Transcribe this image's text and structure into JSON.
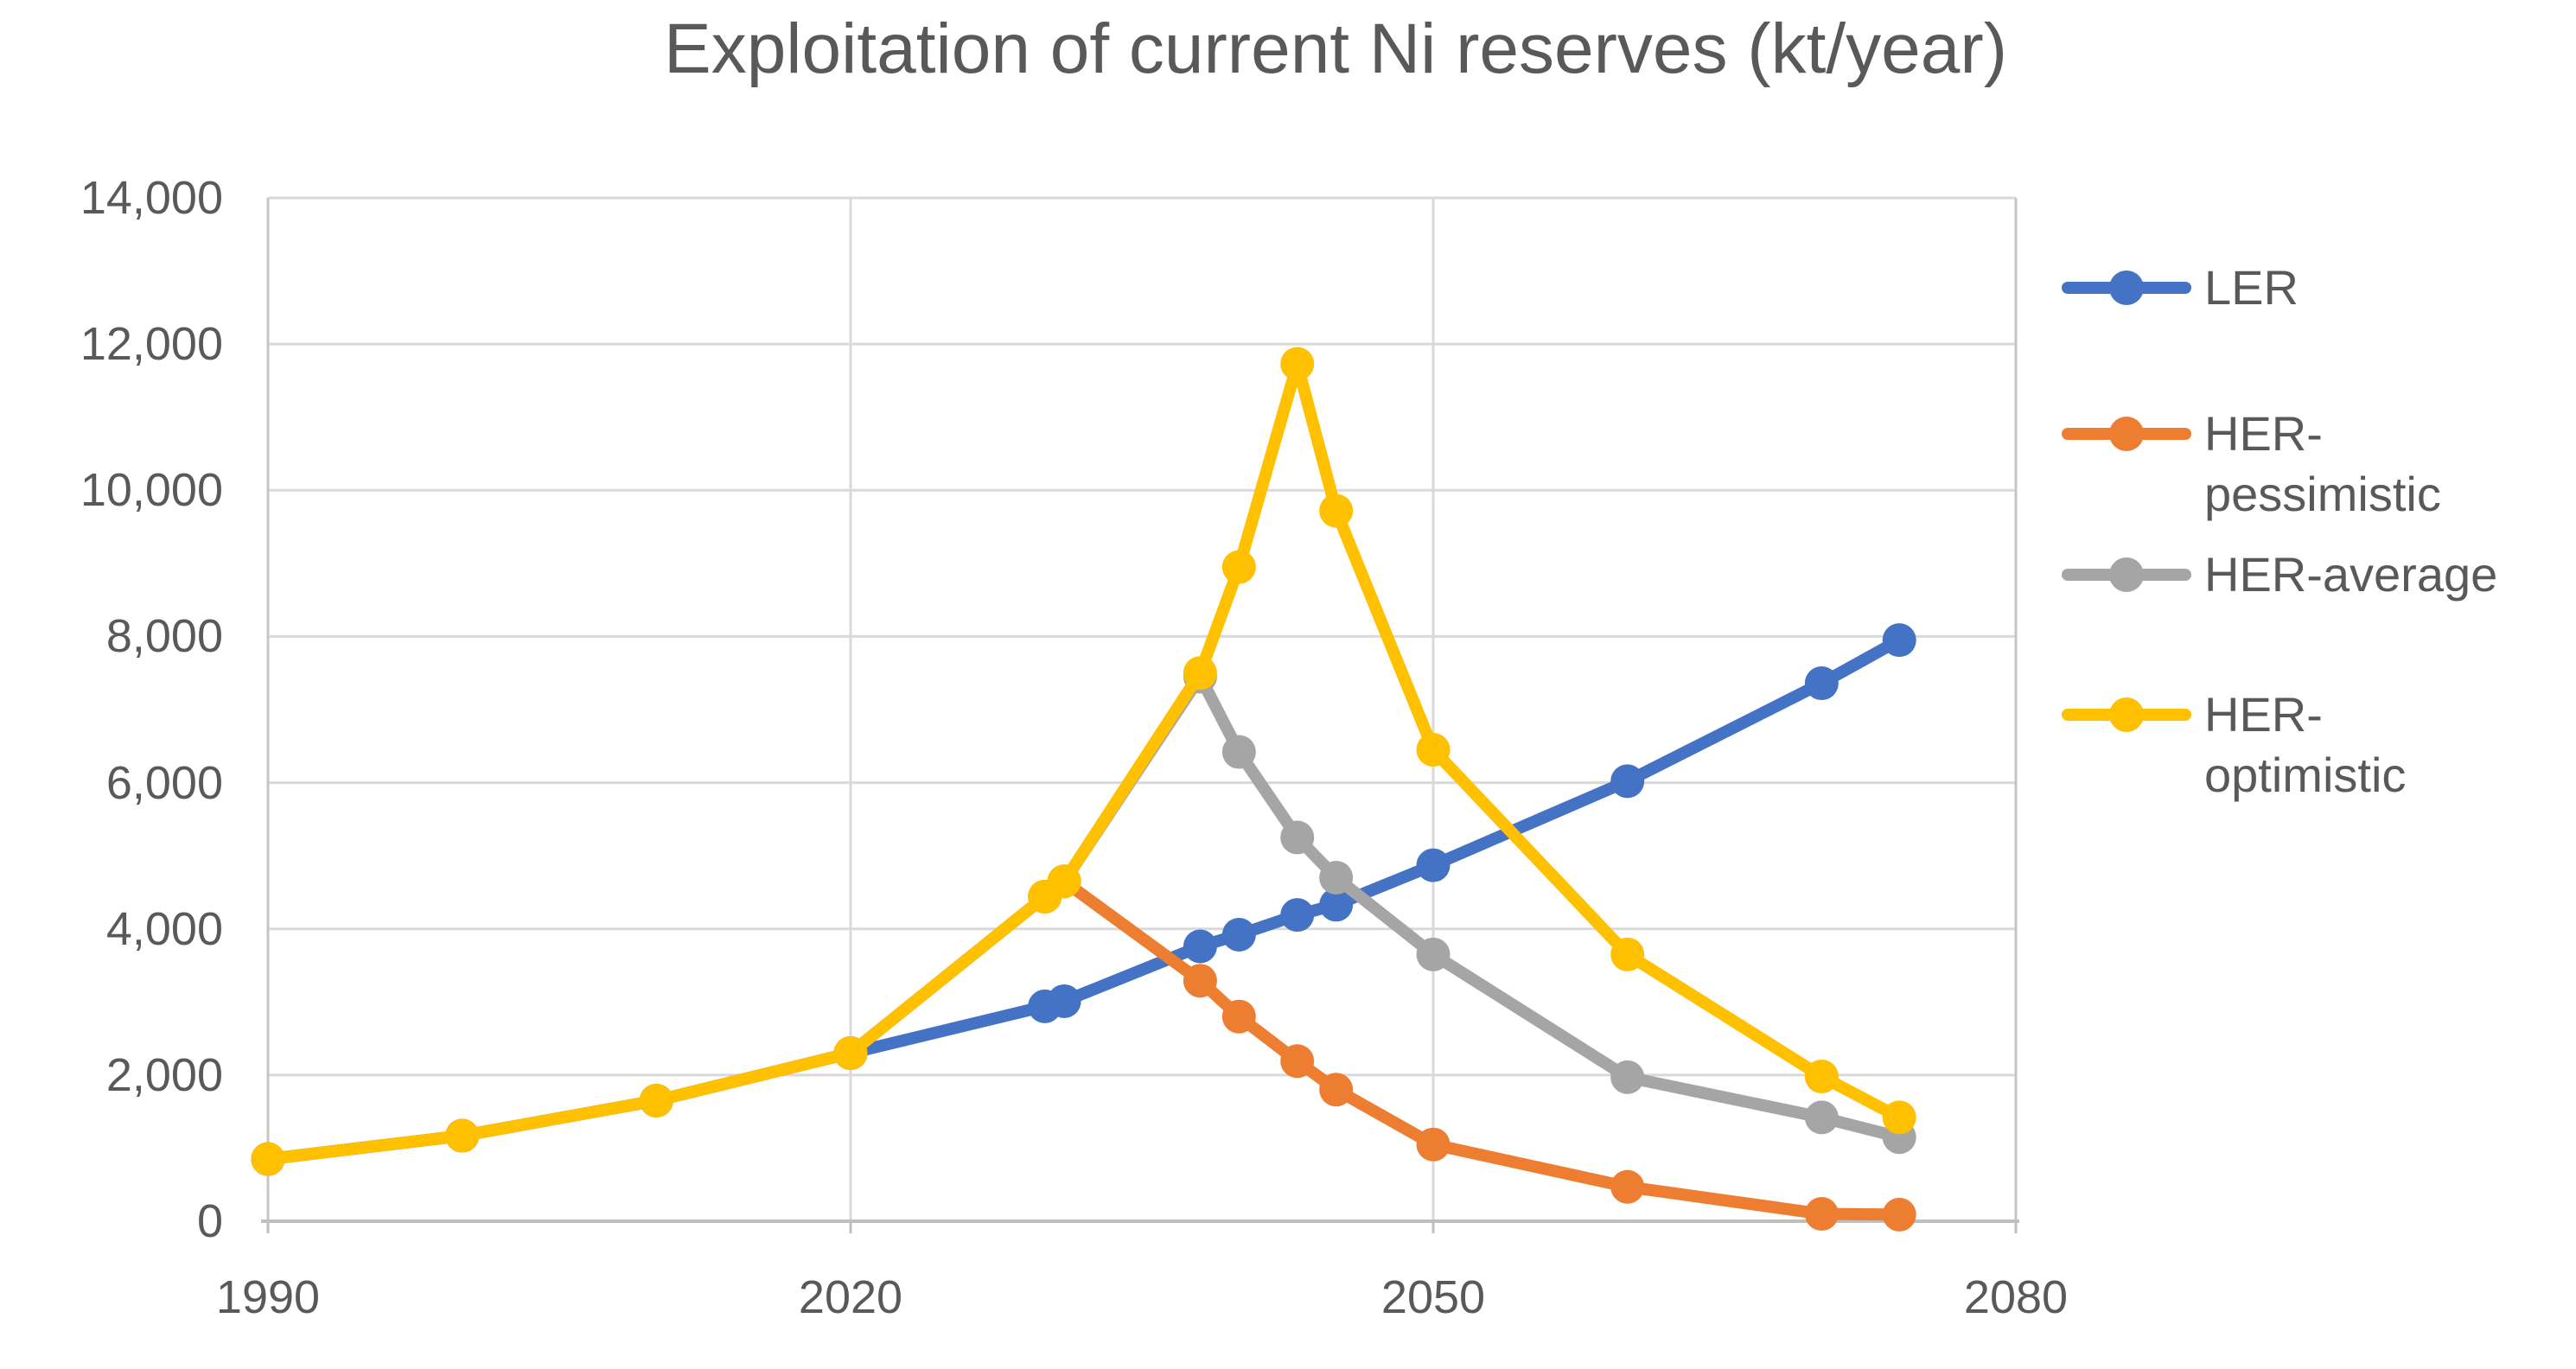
{
  "title": "Exploitation of current Ni reserves (kt/year)",
  "colors": {
    "gridline": "#D9D9D9",
    "axis_line": "#BFBFBF",
    "plot_border": "#C6C6C6",
    "text": "#595959",
    "background": "#FFFFFF",
    "series_blue": "#4472C4",
    "series_orange": "#ED7D31",
    "series_gray": "#A5A5A5",
    "series_yellow": "#FFC000"
  },
  "chart_data": {
    "type": "line",
    "title": "Exploitation of current Ni reserves (kt/year)",
    "xlabel": "",
    "ylabel": "",
    "xlim": [
      1990,
      2080
    ],
    "ylim": [
      0,
      14000
    ],
    "grid": true,
    "legend_position": "right",
    "marker": "circle",
    "x": [
      1990,
      2000,
      2010,
      2020,
      2030,
      2031,
      2038,
      2040,
      2043,
      2045,
      2050,
      2060,
      2070,
      2074
    ],
    "series": [
      {
        "name": "LER",
        "color": "#4472C4",
        "values": [
          850,
          1170,
          1650,
          2300,
          2940,
          3010,
          3760,
          3920,
          4190,
          4330,
          4870,
          6020,
          7360,
          7950
        ]
      },
      {
        "name": "HER-pessimistic",
        "color": "#ED7D31",
        "values": [
          850,
          1170,
          1650,
          2300,
          4440,
          4650,
          3290,
          2800,
          2190,
          1800,
          1050,
          470,
          100,
          90
        ]
      },
      {
        "name": "HER-average",
        "color": "#A5A5A5",
        "values": [
          850,
          1170,
          1650,
          2300,
          4440,
          4650,
          7450,
          6420,
          5250,
          4700,
          3650,
          1970,
          1420,
          1150
        ]
      },
      {
        "name": "HER-optimistic",
        "color": "#FFC000",
        "values": [
          850,
          1170,
          1650,
          2300,
          4440,
          4650,
          7500,
          8950,
          11730,
          9720,
          6450,
          3650,
          1980,
          1420
        ]
      }
    ],
    "y_ticks": [
      "14,000",
      "12,000",
      "10,000",
      "8,000",
      "6,000",
      "4,000",
      "2,000",
      "0"
    ],
    "y_tick_values": [
      14000,
      12000,
      10000,
      8000,
      6000,
      4000,
      2000,
      0
    ],
    "x_ticks": [
      "1990",
      "2020",
      "2050",
      "2080"
    ],
    "x_tick_years": [
      1990,
      2020,
      2050,
      2080
    ]
  },
  "legend": {
    "items": [
      {
        "label": "LER"
      },
      {
        "label": "HER-pessimistic"
      },
      {
        "label": "HER-average"
      },
      {
        "label": "HER-optimistic"
      }
    ]
  }
}
